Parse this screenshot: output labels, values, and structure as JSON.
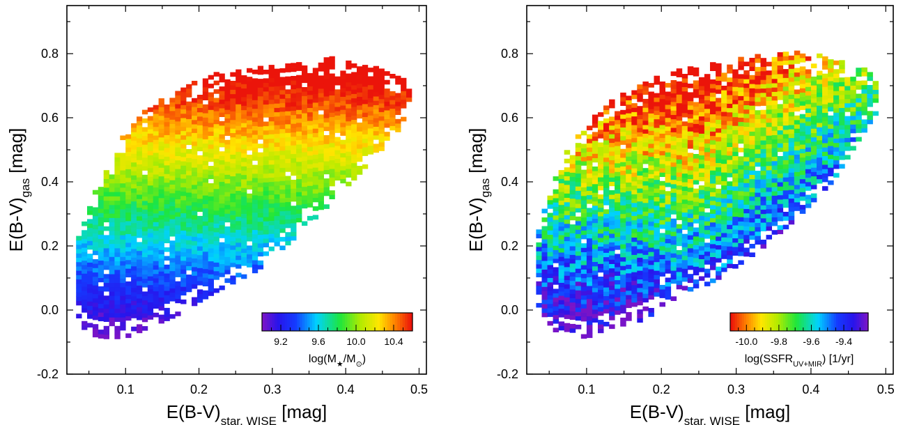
{
  "chart_data": [
    {
      "type": "heatmap",
      "xlabel": {
        "main": "E(B-V)",
        "sub": "star, WISE",
        "unit": " [mag]"
      },
      "ylabel": {
        "main": "E(B-V)",
        "sub": "gas",
        "unit": " [mag]"
      },
      "xlim": [
        0.02,
        0.51
      ],
      "ylim": [
        -0.2,
        0.95
      ],
      "xticks": [
        0.1,
        0.2,
        0.3,
        0.4,
        0.5
      ],
      "xtick_labels": [
        "0.1",
        "0.2",
        "0.3",
        "0.4",
        "0.5"
      ],
      "yticks": [
        -0.2,
        0.0,
        0.2,
        0.4,
        0.6,
        0.8
      ],
      "ytick_labels": [
        "-0.2",
        "0.0",
        "0.2",
        "0.4",
        "0.6",
        "0.8"
      ],
      "colorbar": {
        "placement": "bottom-right",
        "range": [
          9.0,
          10.6
        ],
        "ticks": [
          9.2,
          9.6,
          10.0,
          10.4
        ],
        "tick_labels": [
          "9.2",
          "9.6",
          "10.0",
          "10.4"
        ],
        "colormap": "rainbow-blue-to-red",
        "label": {
          "pre": "log(M",
          "sub": "★",
          "mid": "/M",
          "sub2": "⊙",
          "post": ")"
        }
      },
      "color_trend": "color rises with E(B-V)gas: blue/purple near 0.0, green near 0.3, red above 0.6",
      "envelope": [
        {
          "x": 0.03,
          "ymin": -0.02,
          "ymax": 0.18
        },
        {
          "x": 0.05,
          "ymin": -0.08,
          "ymax": 0.32
        },
        {
          "x": 0.07,
          "ymin": -0.09,
          "ymax": 0.42
        },
        {
          "x": 0.1,
          "ymin": -0.09,
          "ymax": 0.55
        },
        {
          "x": 0.13,
          "ymin": -0.06,
          "ymax": 0.62
        },
        {
          "x": 0.17,
          "ymin": -0.02,
          "ymax": 0.68
        },
        {
          "x": 0.22,
          "ymin": 0.05,
          "ymax": 0.73
        },
        {
          "x": 0.28,
          "ymin": 0.12,
          "ymax": 0.76
        },
        {
          "x": 0.33,
          "ymin": 0.22,
          "ymax": 0.77
        },
        {
          "x": 0.38,
          "ymin": 0.33,
          "ymax": 0.78
        },
        {
          "x": 0.43,
          "ymin": 0.45,
          "ymax": 0.76
        },
        {
          "x": 0.47,
          "ymin": 0.55,
          "ymax": 0.72
        },
        {
          "x": 0.49,
          "ymin": 0.64,
          "ymax": 0.7
        }
      ]
    },
    {
      "type": "heatmap",
      "xlabel": {
        "main": "E(B-V)",
        "sub": "star, WISE",
        "unit": " [mag]"
      },
      "ylabel": {
        "main": "E(B-V)",
        "sub": "gas",
        "unit": " [mag]"
      },
      "xlim": [
        0.02,
        0.51
      ],
      "ylim": [
        -0.2,
        0.95
      ],
      "xticks": [
        0.1,
        0.2,
        0.3,
        0.4,
        0.5
      ],
      "xtick_labels": [
        "0.1",
        "0.2",
        "0.3",
        "0.4",
        "0.5"
      ],
      "yticks": [
        -0.2,
        0.0,
        0.2,
        0.4,
        0.6,
        0.8
      ],
      "ytick_labels": [
        "-0.2",
        "0.0",
        "0.2",
        "0.4",
        "0.6",
        "0.8"
      ],
      "colorbar": {
        "placement": "bottom-right",
        "range": [
          -10.1,
          -9.25
        ],
        "ticks": [
          -10.0,
          -9.8,
          -9.6,
          -9.4
        ],
        "tick_labels": [
          "-10.0",
          "-9.8",
          "-9.6",
          "-9.4"
        ],
        "colormap": "rainbow-red-to-blue",
        "label": {
          "pre": "log(SSFR",
          "sub": "UV+MIR",
          "mid": ")",
          "sub2": "",
          "post": " [1/yr]"
        }
      },
      "color_trend": "red at high E(B-V)gas and low E(B-V)star; blue/purple at low E(B-V)gas and toward high E(B-V)star",
      "envelope": [
        {
          "x": 0.03,
          "ymin": 0.02,
          "ymax": 0.2
        },
        {
          "x": 0.05,
          "ymin": -0.06,
          "ymax": 0.36
        },
        {
          "x": 0.07,
          "ymin": -0.08,
          "ymax": 0.48
        },
        {
          "x": 0.1,
          "ymin": -0.09,
          "ymax": 0.58
        },
        {
          "x": 0.13,
          "ymin": -0.06,
          "ymax": 0.64
        },
        {
          "x": 0.17,
          "ymin": -0.04,
          "ymax": 0.7
        },
        {
          "x": 0.22,
          "ymin": 0.02,
          "ymax": 0.74
        },
        {
          "x": 0.28,
          "ymin": 0.1,
          "ymax": 0.77
        },
        {
          "x": 0.33,
          "ymin": 0.18,
          "ymax": 0.79
        },
        {
          "x": 0.38,
          "ymin": 0.28,
          "ymax": 0.8
        },
        {
          "x": 0.43,
          "ymin": 0.4,
          "ymax": 0.78
        },
        {
          "x": 0.47,
          "ymin": 0.55,
          "ymax": 0.76
        },
        {
          "x": 0.49,
          "ymin": 0.62,
          "ymax": 0.72
        }
      ]
    }
  ]
}
